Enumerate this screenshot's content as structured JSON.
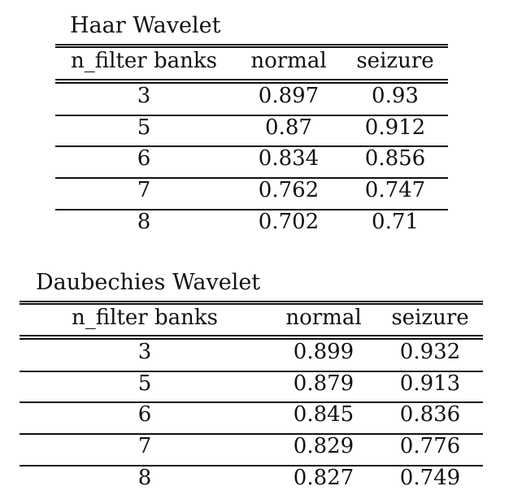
{
  "tables": [
    {
      "caption": "Haar Wavelet",
      "headers": [
        "n_filter banks",
        "normal",
        "seizure"
      ],
      "rows": [
        [
          "3",
          "0.897",
          "0.93"
        ],
        [
          "5",
          "0.87",
          "0.912"
        ],
        [
          "6",
          "0.834",
          "0.856"
        ],
        [
          "7",
          "0.762",
          "0.747"
        ],
        [
          "8",
          "0.702",
          "0.71"
        ]
      ]
    },
    {
      "caption": "Daubechies Wavelet",
      "headers": [
        "n_filter banks",
        "normal",
        "seizure"
      ],
      "rows": [
        [
          "3",
          "0.899",
          "0.932"
        ],
        [
          "5",
          "0.879",
          "0.913"
        ],
        [
          "6",
          "0.845",
          "0.836"
        ],
        [
          "7",
          "0.829",
          "0.776"
        ],
        [
          "8",
          "0.827",
          "0.749"
        ]
      ]
    }
  ]
}
